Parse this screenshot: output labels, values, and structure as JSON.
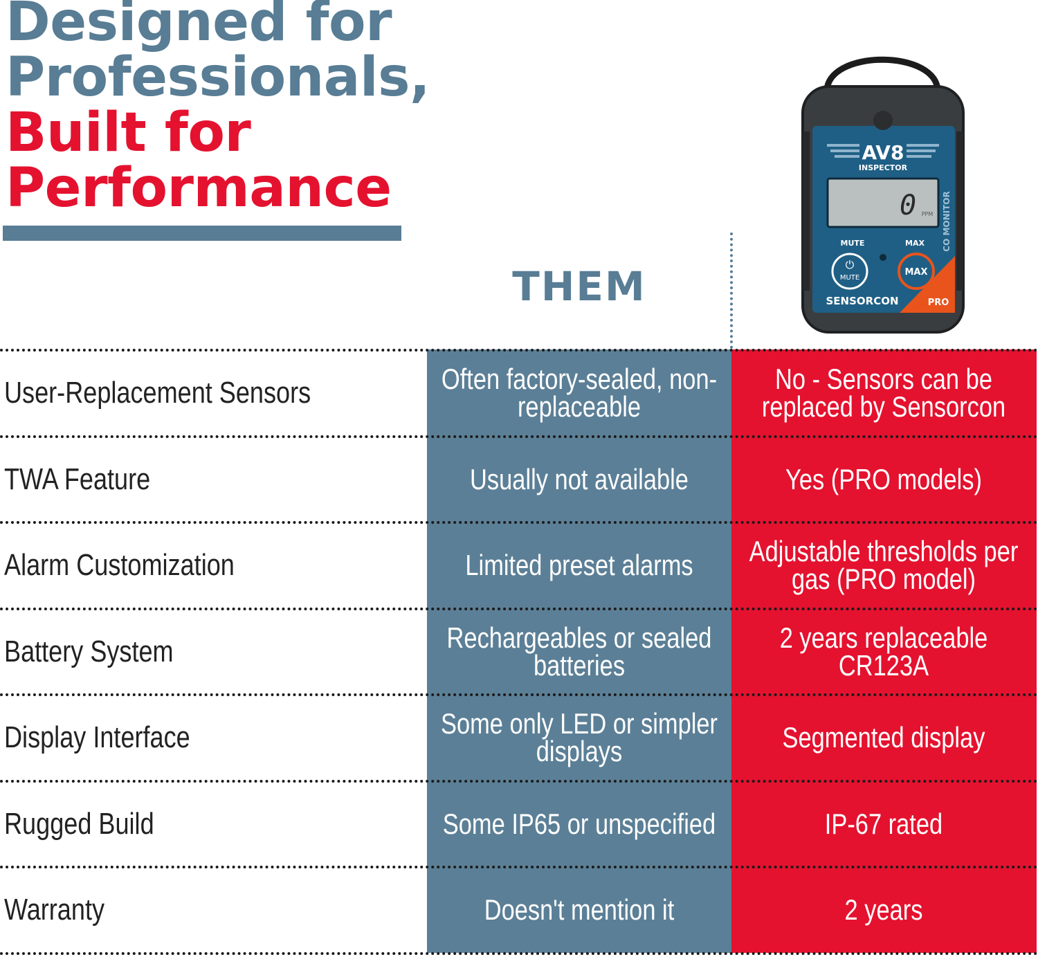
{
  "headline": {
    "line1": "Designed for",
    "line2": "Professionals,",
    "line3": "Built for",
    "line4": "Performance"
  },
  "column_header": "THEM",
  "device": {
    "brand": "AV8",
    "model": "INSPECTOR",
    "display_value": "0",
    "display_unit": "PPM",
    "side_label": "CO MONITOR",
    "mute_label": "MUTE",
    "max_label": "MAX",
    "mute_button": "MUTE",
    "max_button": "MAX",
    "maker": "SENSORCON",
    "edition": "PRO"
  },
  "colors": {
    "blue": "#587d95",
    "red": "#e4122f"
  },
  "rows": [
    {
      "feature": "User-Replacement Sensors",
      "them": "Often factory-sealed, non-replaceable",
      "us": "No - Sensors can be replaced by Sensorcon"
    },
    {
      "feature": "TWA Feature",
      "them": "Usually not available",
      "us": "Yes (PRO models)"
    },
    {
      "feature": "Alarm Customization",
      "them": "Limited preset alarms",
      "us": "Adjustable thresholds per gas (PRO model)"
    },
    {
      "feature": "Battery System",
      "them": "Rechargeables or sealed batteries",
      "us": "2 years replaceable CR123A"
    },
    {
      "feature": "Display Interface",
      "them": "Some only LED or simpler displays",
      "us": "Segmented display"
    },
    {
      "feature": "Rugged Build",
      "them": "Some IP65 or unspecified",
      "us": "IP-67 rated"
    },
    {
      "feature": "Warranty",
      "them": "Doesn't mention it",
      "us": "2 years"
    }
  ]
}
